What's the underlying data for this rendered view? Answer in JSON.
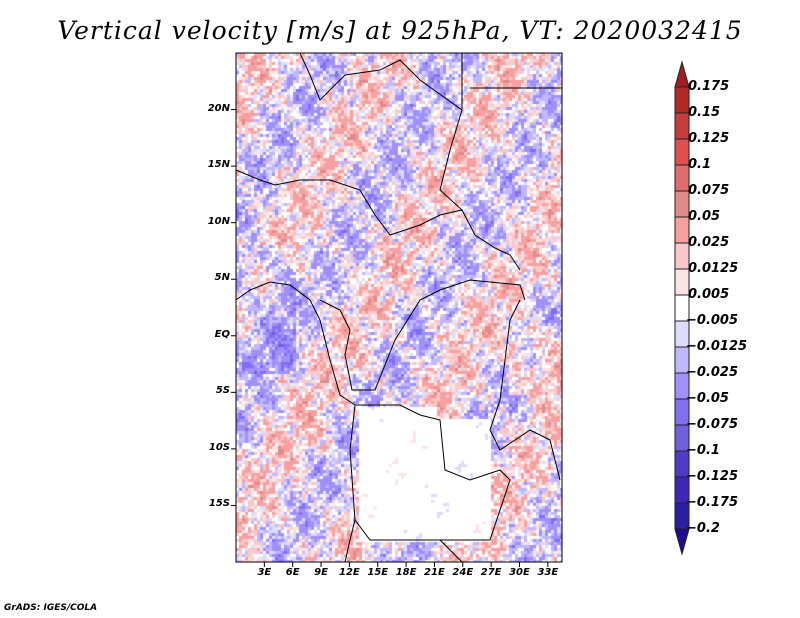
{
  "title": "Vertical velocity [m/s] at 925hPa, VT: 2020032415",
  "footer": "GrADS: IGES/COLA",
  "chart_data": {
    "type": "heatmap",
    "title": "Vertical velocity [m/s] at 925hPa, VT: 2020032415",
    "variable": "Vertical velocity",
    "units": "m/s",
    "level": "925hPa",
    "valid_time": "2020032415",
    "xlim": [
      0,
      34.5
    ],
    "ylim": [
      -20,
      25
    ],
    "x_ticks": [
      3,
      6,
      9,
      12,
      15,
      18,
      21,
      24,
      27,
      30,
      33
    ],
    "x_tick_labels": [
      "3E",
      "6E",
      "9E",
      "12E",
      "15E",
      "18E",
      "21E",
      "24E",
      "27E",
      "30E",
      "33E"
    ],
    "y_ticks": [
      20,
      15,
      10,
      5,
      0,
      -5,
      -10,
      -15
    ],
    "y_tick_labels": [
      "20N",
      "15N",
      "10N",
      "5N",
      "EQ",
      "5S",
      "10S",
      "15S"
    ],
    "colorbar": {
      "labels": [
        "0.175",
        "0.15",
        "0.125",
        "0.1",
        "0.075",
        "0.05",
        "0.025",
        "0.0125",
        "0.005",
        "-0.005",
        "-0.0125",
        "-0.025",
        "-0.05",
        "-0.075",
        "-0.1",
        "-0.125",
        "-0.175",
        "-0.2"
      ],
      "colors": [
        "#a01e1e",
        "#b42828",
        "#c83c3c",
        "#e05050",
        "#e06c6c",
        "#e08a8a",
        "#f8a0a0",
        "#fac8c8",
        "#fde4e4",
        "#ffffff",
        "#dcdcfc",
        "#c0b8fc",
        "#a090fc",
        "#8070f0",
        "#7060dc",
        "#4c3cc8",
        "#3c28b4",
        "#2c1ea0",
        "#1e0a96"
      ]
    }
  }
}
